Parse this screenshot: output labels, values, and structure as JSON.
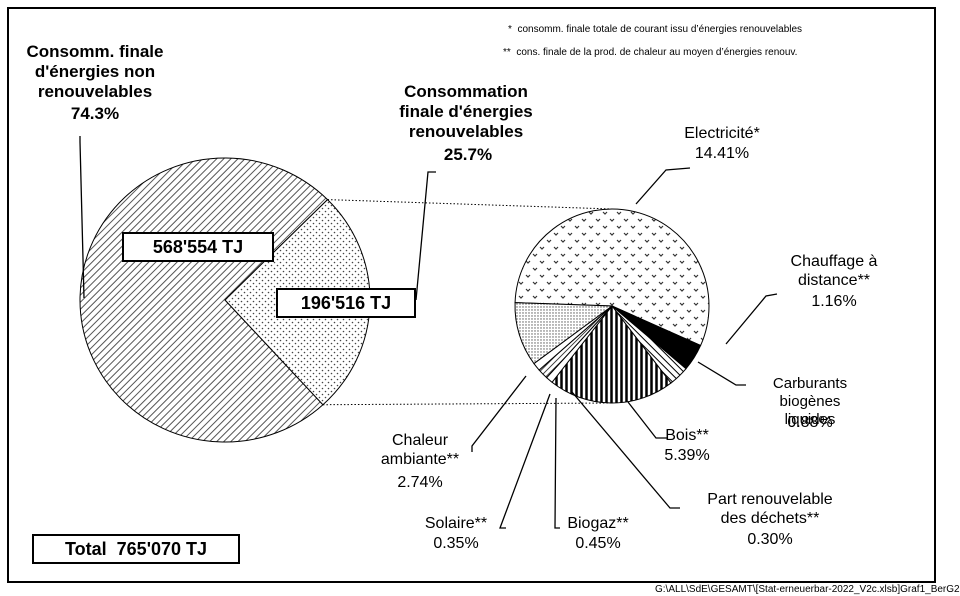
{
  "chart_data": [
    {
      "type": "pie",
      "categories": [
        "Consomm. finale\nd'énergies non\nrenouvelables",
        "Consommation\nfinale d'énergies\nrenouvelables"
      ],
      "values": [
        74.3,
        25.7
      ],
      "value_labels": [
        "74.3%",
        "25.7%"
      ],
      "energy_values": [
        568554,
        196516
      ],
      "energy_labels": [
        "568'554 TJ",
        "196'516 TJ"
      ],
      "patterns": [
        "diagonal",
        "dots"
      ]
    },
    {
      "type": "pie",
      "categories": [
        "Electricité*",
        "Chauffage à\ndistance**",
        "Carburants biogènes\nliquides",
        "Bois**",
        "Part renouvelable\ndes déchets**",
        "Biogaz**",
        "Solaire**",
        "Chaleur\nambiante**"
      ],
      "values": [
        14.41,
        1.16,
        0.88,
        5.39,
        0.3,
        0.45,
        0.35,
        2.74
      ],
      "value_labels": [
        "14.41%",
        "1.16%",
        "0.88%",
        "5.39%",
        "0.30%",
        "0.45%",
        "0.35%",
        "2.74%"
      ],
      "patterns": [
        "zigzag",
        "black",
        "hatch",
        "vertical",
        "white",
        "crosshatch",
        "white",
        "finedots"
      ]
    }
  ],
  "total": {
    "label": "Total",
    "value": 765070,
    "value_label": "765'070 TJ"
  },
  "footnotes": [
    "*  consomm. finale totale de courant issu d’énergies renouvelables",
    "**  cons. finale de la prod. de chaleur au moyen d’énergies renouv."
  ],
  "footer": "G:\\ALL\\SdE\\GESAMT\\[Stat-erneuerbar-2022_V2c.xlsb]Graf1_BerG2"
}
